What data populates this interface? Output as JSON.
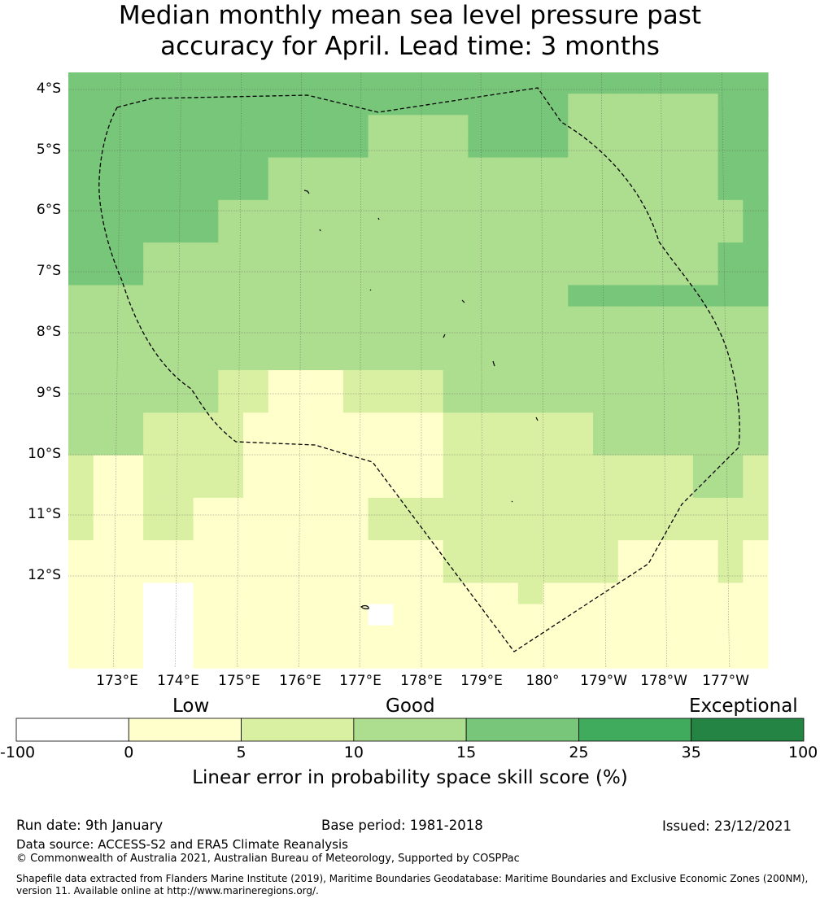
{
  "title": {
    "line1": "Median monthly mean sea level pressure past",
    "line2": "accuracy for April. Lead time: 3 months"
  },
  "map": {
    "lat_labels": [
      "4°S",
      "5°S",
      "6°S",
      "7°S",
      "8°S",
      "9°S",
      "10°S",
      "11°S",
      "12°S"
    ],
    "lon_labels": [
      "173°E",
      "174°E",
      "175°E",
      "176°E",
      "177°E",
      "178°E",
      "179°E",
      "180°",
      "179°W",
      "178°W",
      "177°W"
    ],
    "grid_rows": [
      "4444444444444444444444444444",
      "4444444444444444444433333344",
      "4444444444443333444433333344",
      "4444444444443333444433333344",
      "4444444433333333333333333344",
      "4444444433333333333333333344",
      "4444443333333333333333333334",
      "4444443333333333333333333334",
      "4443333333333333333333333344",
      "4443333333333333333333333344",
      "3333333333333333333344444444",
      "3333333333333333333333333333",
      "3333333333333333333333333333",
      "3333333333333333333333333333",
      "3333332211122223333333333333",
      "3333332211122223333333333333",
      "3332222111111112222223333333",
      "3332222111111112222223333333",
      "2112222111111112222222222332",
      "2112222111111112222222222332",
      "2112211111112222222222222222",
      "2112211111112222222222222222",
      "1111111111111112222222111121",
      "1111111111111112222222111121",
      "1110011111111111112111111111",
      "1110011111110111111111111111",
      "1110011111111111111111111111",
      "1110011111111111111111111111"
    ],
    "bin_colors": [
      "#ffffff",
      "#ffffcc",
      "#d9f0a3",
      "#addd8e",
      "#78c679",
      "#41ab5d",
      "#238443"
    ]
  },
  "colorbar": {
    "words": [
      "Low",
      "Good",
      "Exceptional"
    ],
    "ticks": [
      "-100",
      "0",
      "5",
      "10",
      "15",
      "25",
      "35",
      "100"
    ],
    "colors": [
      "#ffffff",
      "#ffffcc",
      "#d9f0a3",
      "#addd8e",
      "#78c679",
      "#41ab5d",
      "#238443"
    ],
    "title": "Linear error in probability space skill score (%)"
  },
  "footer": {
    "run_date": "Run date: 9th January",
    "base_period": "Base period: 1981-2018",
    "issued": "Issued: 23/12/2021",
    "data_source": "Data source: ACCESS-S2 and ERA5 Climate Reanalysis",
    "copyright": "© Commonwealth of Australia 2021, Australian Bureau of Meteorology, Supported by COSPPac",
    "shapefile_line1": "Shapefile data extracted from Flanders Marine Institute (2019), Maritime Boundaries Geodatabase: Maritime Boundaries and Exclusive Economic Zones (200NM),",
    "shapefile_line2": "version 11. Available online at http://www.marineregions.org/."
  }
}
